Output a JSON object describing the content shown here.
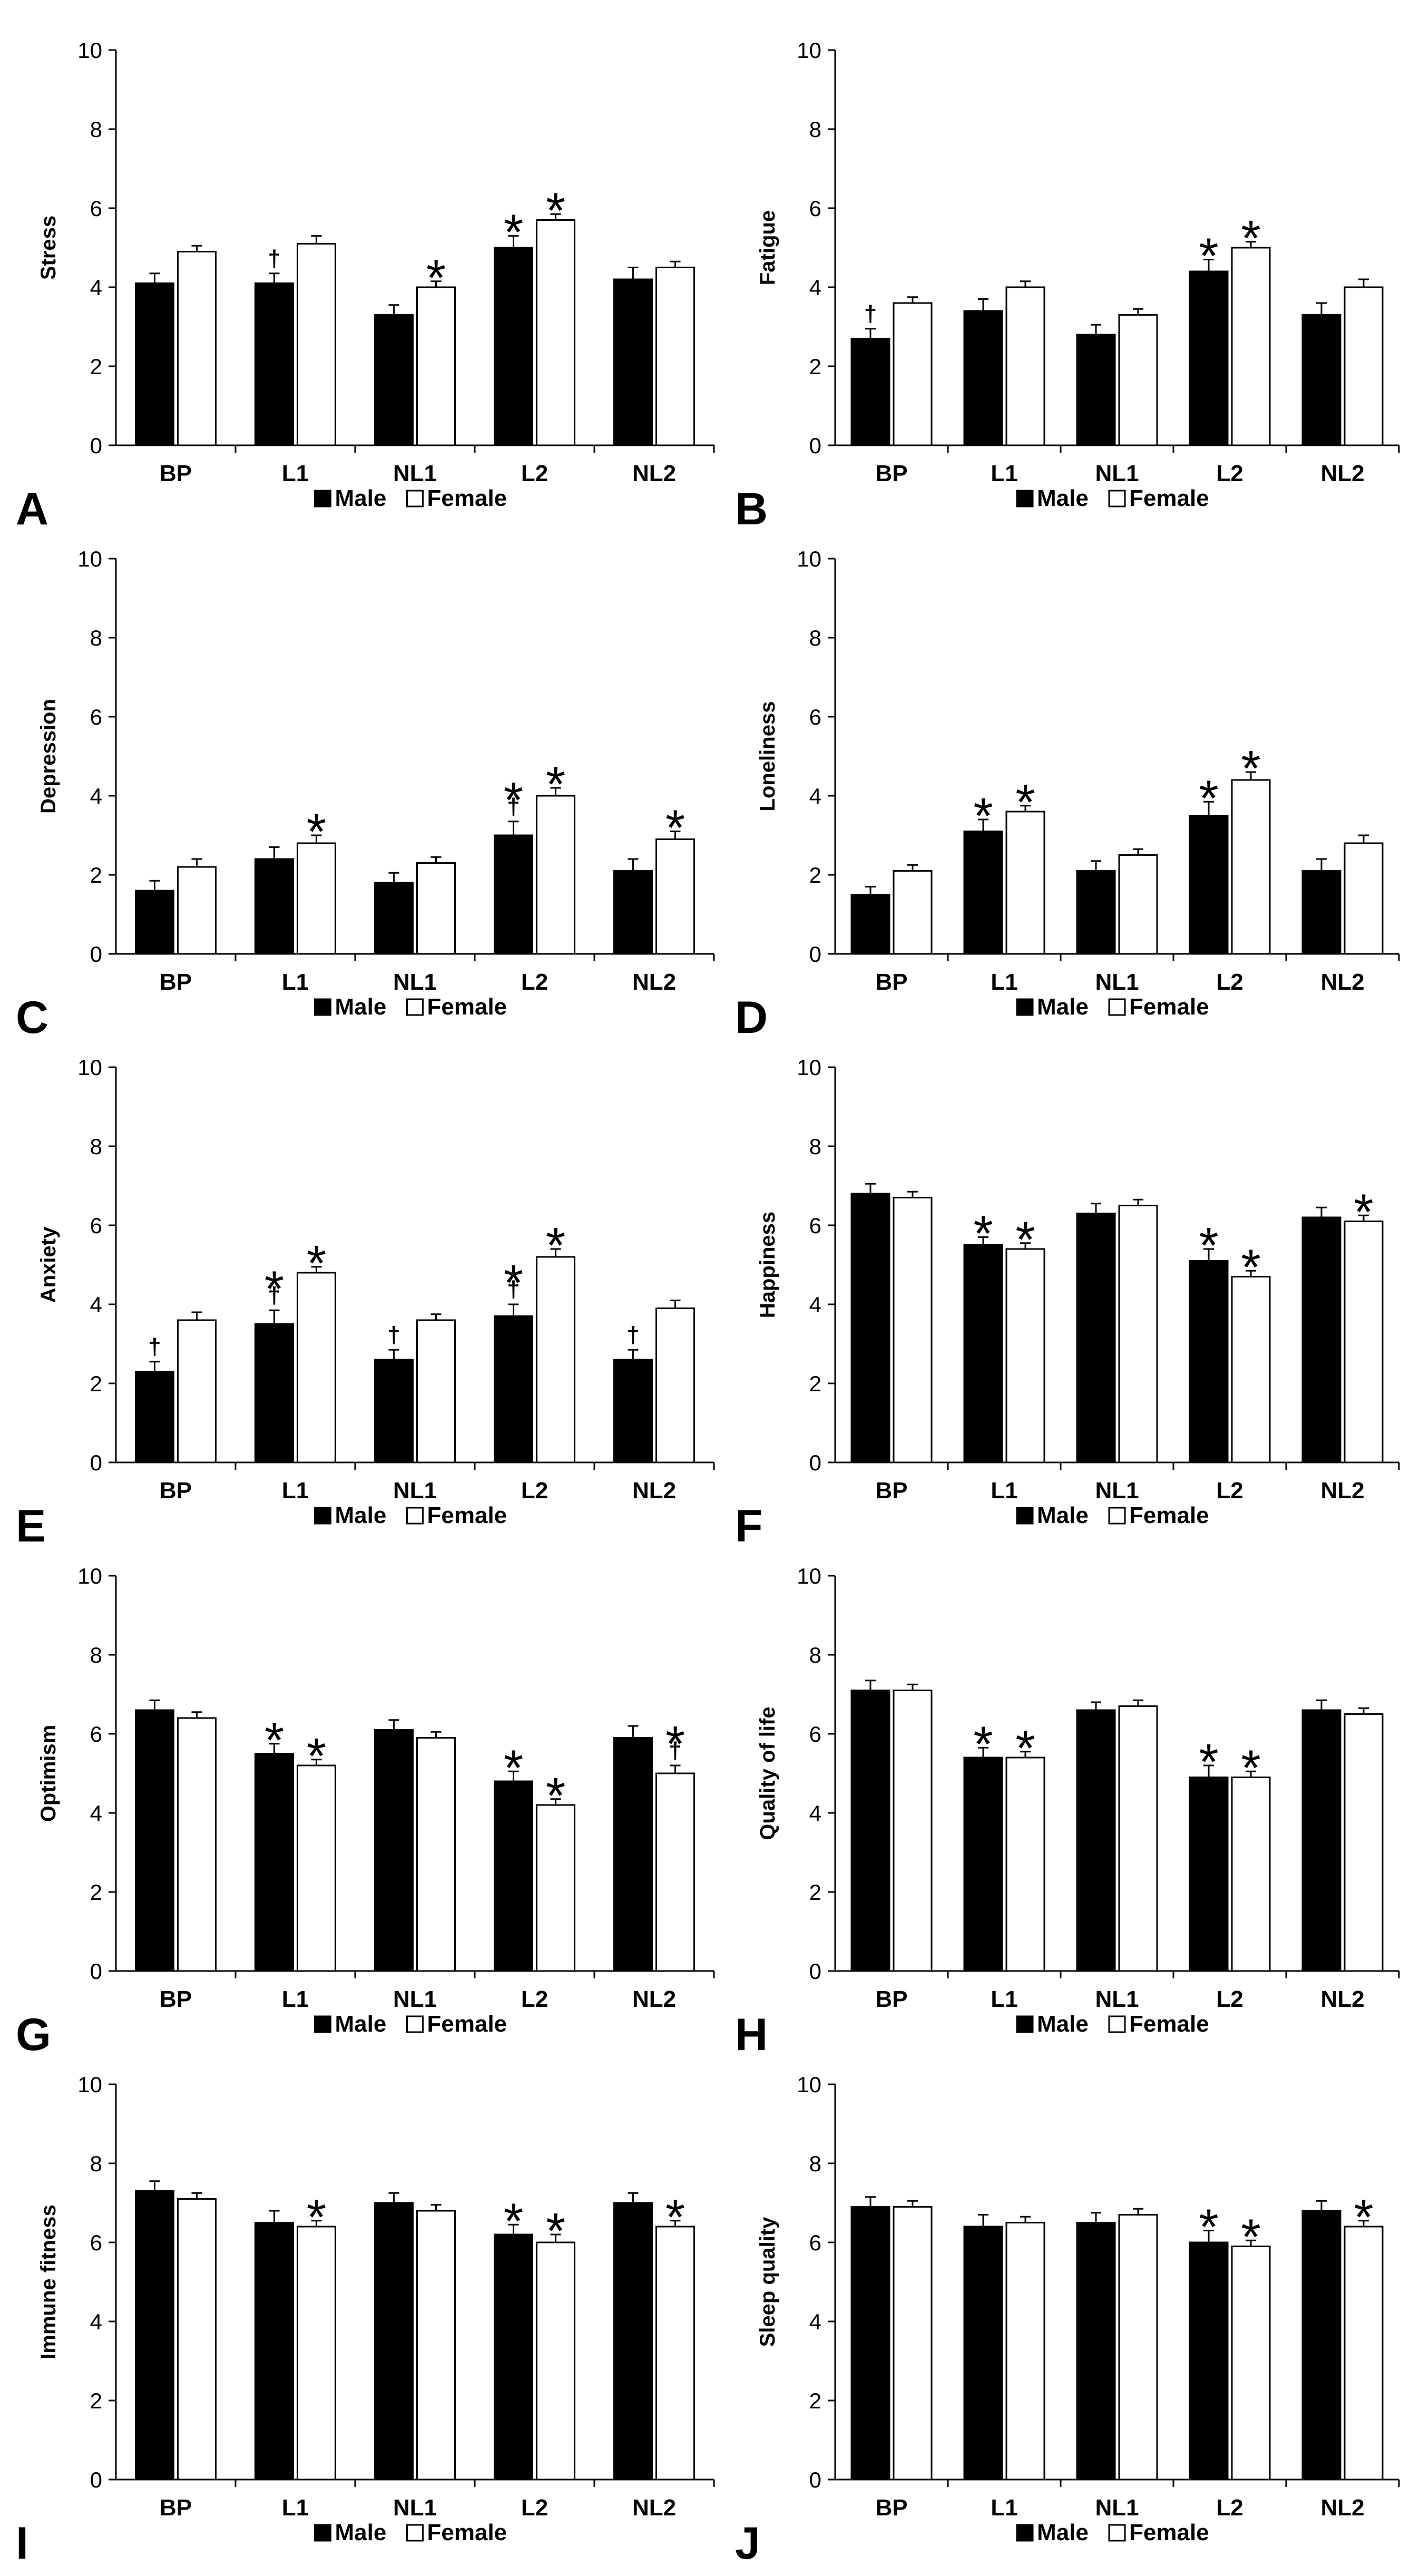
{
  "chart_data": [
    {
      "panel": "A",
      "type": "bar",
      "ylabel": "Stress",
      "categories": [
        "BP",
        "L1",
        "NL1",
        "L2",
        "NL2"
      ],
      "ylim": [
        0,
        10
      ],
      "yticks": [
        "0",
        "2",
        "4",
        "6",
        "8",
        "10"
      ],
      "legend": "bottom",
      "series": [
        {
          "name": "Male",
          "color": "#000000",
          "values": [
            4.1,
            4.1,
            3.3,
            5.0,
            4.2
          ],
          "errors": [
            0.25,
            0.25,
            0.25,
            0.3,
            0.3
          ],
          "marks": [
            "",
            "†",
            "",
            "*",
            ""
          ]
        },
        {
          "name": "Female",
          "color": "#ffffff",
          "values": [
            4.9,
            5.1,
            4.0,
            5.7,
            4.5
          ],
          "errors": [
            0.15,
            0.2,
            0.15,
            0.15,
            0.15
          ],
          "marks": [
            "",
            "",
            "*",
            "*",
            ""
          ]
        }
      ]
    },
    {
      "panel": "B",
      "type": "bar",
      "ylabel": "Fatigue",
      "categories": [
        "BP",
        "L1",
        "NL1",
        "L2",
        "NL2"
      ],
      "ylim": [
        0,
        10
      ],
      "yticks": [
        "0",
        "2",
        "4",
        "6",
        "8",
        "10"
      ],
      "legend": "bottom",
      "series": [
        {
          "name": "Male",
          "color": "#000000",
          "values": [
            2.7,
            3.4,
            2.8,
            4.4,
            3.3
          ],
          "errors": [
            0.25,
            0.3,
            0.25,
            0.3,
            0.3
          ],
          "marks": [
            "†",
            "",
            "",
            "*",
            ""
          ]
        },
        {
          "name": "Female",
          "color": "#ffffff",
          "values": [
            3.6,
            4.0,
            3.3,
            5.0,
            4.0
          ],
          "errors": [
            0.15,
            0.15,
            0.15,
            0.15,
            0.2
          ],
          "marks": [
            "",
            "",
            "",
            "*",
            ""
          ]
        }
      ]
    },
    {
      "panel": "C",
      "type": "bar",
      "ylabel": "Depression",
      "categories": [
        "BP",
        "L1",
        "NL1",
        "L2",
        "NL2"
      ],
      "ylim": [
        0,
        10
      ],
      "yticks": [
        "0",
        "2",
        "4",
        "6",
        "8",
        "10"
      ],
      "legend": "bottom",
      "series": [
        {
          "name": "Male",
          "color": "#000000",
          "values": [
            1.6,
            2.4,
            1.8,
            3.0,
            2.1
          ],
          "errors": [
            0.25,
            0.3,
            0.25,
            0.35,
            0.3
          ],
          "marks": [
            "",
            "",
            "",
            "*†",
            ""
          ]
        },
        {
          "name": "Female",
          "color": "#ffffff",
          "values": [
            2.2,
            2.8,
            2.3,
            4.0,
            2.9
          ],
          "errors": [
            0.2,
            0.2,
            0.15,
            0.2,
            0.2
          ],
          "marks": [
            "",
            "*",
            "",
            "*",
            "*"
          ]
        }
      ]
    },
    {
      "panel": "D",
      "type": "bar",
      "ylabel": "Loneliness",
      "categories": [
        "BP",
        "L1",
        "NL1",
        "L2",
        "NL2"
      ],
      "ylim": [
        0,
        10
      ],
      "yticks": [
        "0",
        "2",
        "4",
        "6",
        "8",
        "10"
      ],
      "legend": "bottom",
      "series": [
        {
          "name": "Male",
          "color": "#000000",
          "values": [
            1.5,
            3.1,
            2.1,
            3.5,
            2.1
          ],
          "errors": [
            0.2,
            0.3,
            0.25,
            0.35,
            0.3
          ],
          "marks": [
            "",
            "*",
            "",
            "*",
            ""
          ]
        },
        {
          "name": "Female",
          "color": "#ffffff",
          "values": [
            2.1,
            3.6,
            2.5,
            4.4,
            2.8
          ],
          "errors": [
            0.15,
            0.15,
            0.15,
            0.2,
            0.2
          ],
          "marks": [
            "",
            "*",
            "",
            "*",
            ""
          ]
        }
      ]
    },
    {
      "panel": "E",
      "type": "bar",
      "ylabel": "Anxiety",
      "categories": [
        "BP",
        "L1",
        "NL1",
        "L2",
        "NL2"
      ],
      "ylim": [
        0,
        10
      ],
      "yticks": [
        "0",
        "2",
        "4",
        "6",
        "8",
        "10"
      ],
      "legend": "bottom",
      "series": [
        {
          "name": "Male",
          "color": "#000000",
          "values": [
            2.3,
            3.5,
            2.6,
            3.7,
            2.6
          ],
          "errors": [
            0.25,
            0.35,
            0.25,
            0.3,
            0.25
          ],
          "marks": [
            "†",
            "*†",
            "†",
            "*†",
            "†"
          ]
        },
        {
          "name": "Female",
          "color": "#ffffff",
          "values": [
            3.6,
            4.8,
            3.6,
            5.2,
            3.9
          ],
          "errors": [
            0.2,
            0.15,
            0.15,
            0.2,
            0.2
          ],
          "marks": [
            "",
            "*",
            "",
            "*",
            ""
          ]
        }
      ]
    },
    {
      "panel": "F",
      "type": "bar",
      "ylabel": "Happiness",
      "categories": [
        "BP",
        "L1",
        "NL1",
        "L2",
        "NL2"
      ],
      "ylim": [
        0,
        10
      ],
      "yticks": [
        "0",
        "2",
        "4",
        "6",
        "8",
        "10"
      ],
      "legend": "bottom",
      "series": [
        {
          "name": "Male",
          "color": "#000000",
          "values": [
            6.8,
            5.5,
            6.3,
            5.1,
            6.2
          ],
          "errors": [
            0.25,
            0.2,
            0.25,
            0.3,
            0.25
          ],
          "marks": [
            "",
            "*",
            "",
            "*",
            ""
          ]
        },
        {
          "name": "Female",
          "color": "#ffffff",
          "values": [
            6.7,
            5.4,
            6.5,
            4.7,
            6.1
          ],
          "errors": [
            0.15,
            0.15,
            0.15,
            0.15,
            0.15
          ],
          "marks": [
            "",
            "*",
            "",
            "*",
            "*"
          ]
        }
      ]
    },
    {
      "panel": "G",
      "type": "bar",
      "ylabel": "Optimism",
      "categories": [
        "BP",
        "L1",
        "NL1",
        "L2",
        "NL2"
      ],
      "ylim": [
        0,
        10
      ],
      "yticks": [
        "0",
        "2",
        "4",
        "6",
        "8",
        "10"
      ],
      "legend": "bottom",
      "series": [
        {
          "name": "Male",
          "color": "#000000",
          "values": [
            6.6,
            5.5,
            6.1,
            4.8,
            5.9
          ],
          "errors": [
            0.25,
            0.25,
            0.25,
            0.25,
            0.3
          ],
          "marks": [
            "",
            "*",
            "",
            "*",
            ""
          ]
        },
        {
          "name": "Female",
          "color": "#ffffff",
          "values": [
            6.4,
            5.2,
            5.9,
            4.2,
            5.0
          ],
          "errors": [
            0.15,
            0.15,
            0.15,
            0.15,
            0.2
          ],
          "marks": [
            "",
            "*",
            "",
            "*",
            "*†"
          ]
        }
      ]
    },
    {
      "panel": "H",
      "type": "bar",
      "ylabel": "Quality of life",
      "categories": [
        "BP",
        "L1",
        "NL1",
        "L2",
        "NL2"
      ],
      "ylim": [
        0,
        10
      ],
      "yticks": [
        "0",
        "2",
        "4",
        "6",
        "8",
        "10"
      ],
      "legend": "bottom",
      "series": [
        {
          "name": "Male",
          "color": "#000000",
          "values": [
            7.1,
            5.4,
            6.6,
            4.9,
            6.6
          ],
          "errors": [
            0.25,
            0.25,
            0.2,
            0.3,
            0.25
          ],
          "marks": [
            "",
            "*",
            "",
            "*",
            ""
          ]
        },
        {
          "name": "Female",
          "color": "#ffffff",
          "values": [
            7.1,
            5.4,
            6.7,
            4.9,
            6.5
          ],
          "errors": [
            0.15,
            0.15,
            0.15,
            0.15,
            0.15
          ],
          "marks": [
            "",
            "*",
            "",
            "*",
            ""
          ]
        }
      ]
    },
    {
      "panel": "I",
      "type": "bar",
      "ylabel": "Immune fitness",
      "categories": [
        "BP",
        "L1",
        "NL1",
        "L2",
        "NL2"
      ],
      "ylim": [
        0,
        10
      ],
      "yticks": [
        "0",
        "2",
        "4",
        "6",
        "8",
        "10"
      ],
      "legend": "bottom",
      "series": [
        {
          "name": "Male",
          "color": "#000000",
          "values": [
            7.3,
            6.5,
            7.0,
            6.2,
            7.0
          ],
          "errors": [
            0.25,
            0.3,
            0.25,
            0.25,
            0.25
          ],
          "marks": [
            "",
            "",
            "",
            "*",
            ""
          ]
        },
        {
          "name": "Female",
          "color": "#ffffff",
          "values": [
            7.1,
            6.4,
            6.8,
            6.0,
            6.4
          ],
          "errors": [
            0.15,
            0.15,
            0.15,
            0.2,
            0.15
          ],
          "marks": [
            "",
            "*",
            "",
            "*",
            "*"
          ]
        }
      ]
    },
    {
      "panel": "J",
      "type": "bar",
      "ylabel": "Sleep quality",
      "categories": [
        "BP",
        "L1",
        "NL1",
        "L2",
        "NL2"
      ],
      "ylim": [
        0,
        10
      ],
      "yticks": [
        "0",
        "2",
        "4",
        "6",
        "8",
        "10"
      ],
      "legend": "bottom",
      "series": [
        {
          "name": "Male",
          "color": "#000000",
          "values": [
            6.9,
            6.4,
            6.5,
            6.0,
            6.8
          ],
          "errors": [
            0.25,
            0.3,
            0.25,
            0.3,
            0.25
          ],
          "marks": [
            "",
            "",
            "",
            "*",
            ""
          ]
        },
        {
          "name": "Female",
          "color": "#ffffff",
          "values": [
            6.9,
            6.5,
            6.7,
            5.9,
            6.4
          ],
          "errors": [
            0.15,
            0.15,
            0.15,
            0.15,
            0.15
          ],
          "marks": [
            "",
            "",
            "",
            "*",
            "*"
          ]
        }
      ]
    }
  ]
}
